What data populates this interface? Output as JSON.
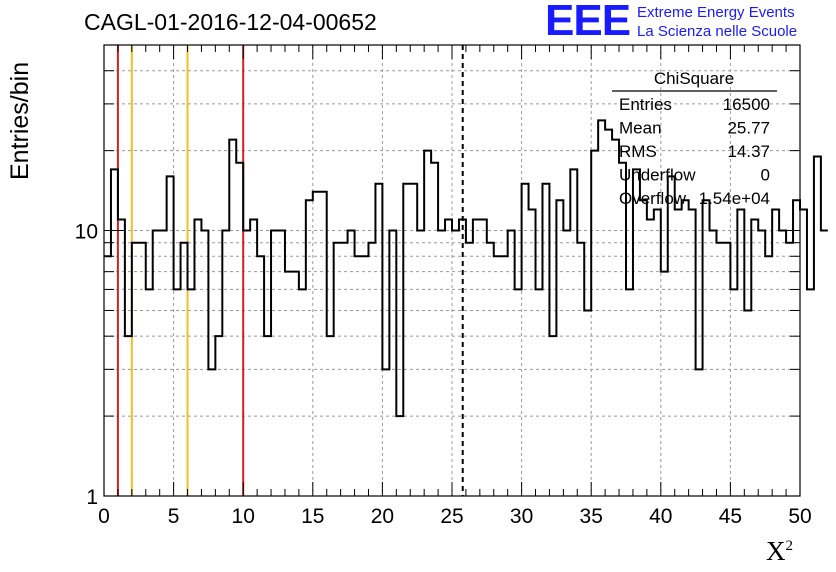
{
  "title": "CAGL-01-2016-12-04-00652",
  "logo": {
    "mark": "EEE",
    "line1": "Extreme Energy Events",
    "line2": "La Scienza nelle Scuole"
  },
  "colors": {
    "red_line": "#d62020",
    "yellow_line": "#f0c020",
    "grid": "#9a9a9a",
    "histogram": "#000000",
    "logo_blue": "#1a1aff"
  },
  "stats": {
    "name": "ChiSquare",
    "rows": [
      {
        "label": "Entries",
        "value": "16500"
      },
      {
        "label": "Mean",
        "value": "25.77"
      },
      {
        "label": "RMS",
        "value": "14.37"
      },
      {
        "label": "Underflow",
        "value": "0"
      },
      {
        "label": "Overflow",
        "value": "1.54e+04"
      }
    ]
  },
  "chart_data": {
    "type": "histogram",
    "xlabel": "X",
    "xlabel_sup": "2",
    "ylabel": "Entries/bin",
    "xlim": [
      0,
      50
    ],
    "ylim": [
      1,
      50
    ],
    "yscale": "log",
    "grid": true,
    "x_ticks": [
      "0",
      "5",
      "10",
      "15",
      "20",
      "25",
      "30",
      "35",
      "40",
      "45",
      "50"
    ],
    "y_ticks": [
      "1",
      "10"
    ],
    "bin_width": 0.5,
    "values": [
      8,
      17,
      11,
      4,
      9,
      9,
      6,
      10,
      10,
      16,
      6,
      9,
      6,
      11,
      10,
      3,
      4,
      10,
      22,
      18,
      10,
      11,
      8,
      4,
      10,
      10,
      7,
      7,
      6,
      13,
      14,
      14,
      4,
      9,
      9,
      10,
      8,
      8,
      9,
      15,
      3,
      10,
      2,
      15,
      15,
      10,
      20,
      18,
      10,
      11,
      10,
      11,
      9,
      11,
      11,
      9,
      8,
      8,
      10,
      6,
      15,
      12,
      6,
      15,
      4,
      13,
      10,
      17,
      9,
      5,
      20,
      26,
      24,
      22,
      18,
      6,
      17,
      13,
      11,
      12,
      7,
      16,
      12,
      13,
      12,
      3,
      13,
      10,
      9,
      9,
      6,
      12,
      5,
      11,
      10,
      8,
      12,
      10,
      9,
      13,
      12,
      6,
      19,
      10
    ],
    "red_lines": [
      1,
      10
    ],
    "yellow_lines": [
      2,
      6
    ],
    "dashed_lines": [
      25.77
    ],
    "legend": "top-right"
  }
}
